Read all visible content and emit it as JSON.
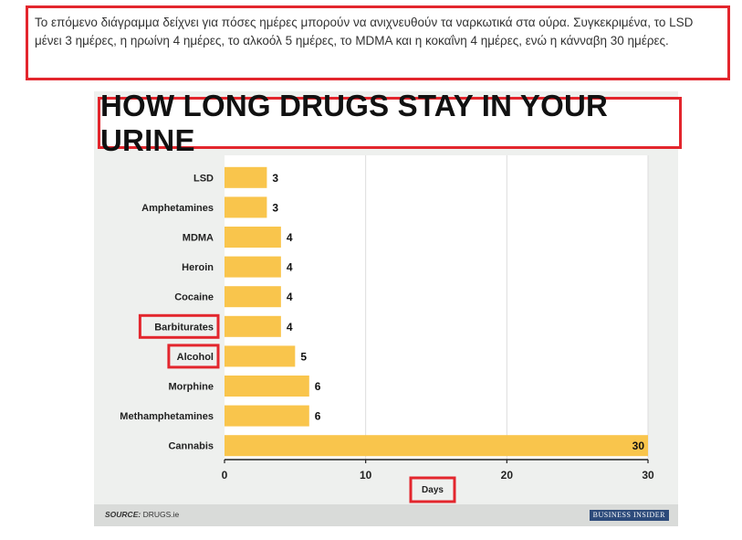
{
  "intro_text": "Το επόμενο διάγραμμα δείχνει για πόσες ημέρες μπορούν να ανιχνευθούν τα ναρκωτικά στα ούρα. Συγκεκριμένα, το LSD μένει 3 ημέρες, η ηρωίνη 4 ημέρες, το αλκοόλ 5 ημέρες, το MDMA και η κοκαΐνη 4 ημέρες, ενώ η κάνναβη 30 ημέρες.",
  "footer": {
    "source_label": "SOURCE:",
    "source_value": "DRUGS.ie",
    "brand": "BUSINESS INSIDER"
  },
  "highlight_color": "#e3262d",
  "chart_data": {
    "type": "bar",
    "orientation": "horizontal",
    "title": "HOW LONG DRUGS STAY IN YOUR URINE",
    "categories": [
      "LSD",
      "Amphetamines",
      "MDMA",
      "Heroin",
      "Cocaine",
      "Barbiturates",
      "Alcohol",
      "Morphine",
      "Methamphetamines",
      "Cannabis"
    ],
    "values": [
      3,
      3,
      4,
      4,
      4,
      4,
      5,
      6,
      6,
      30
    ],
    "xlabel": "Days",
    "ylabel": "",
    "xlim": [
      0,
      30
    ],
    "xticks": [
      0,
      10,
      20,
      30
    ],
    "grid": true,
    "bar_color": "#f9c54c",
    "highlighted_categories": [
      "Barbiturates",
      "Alcohol"
    ],
    "highlighted_labels": [
      "title",
      "xlabel"
    ]
  }
}
